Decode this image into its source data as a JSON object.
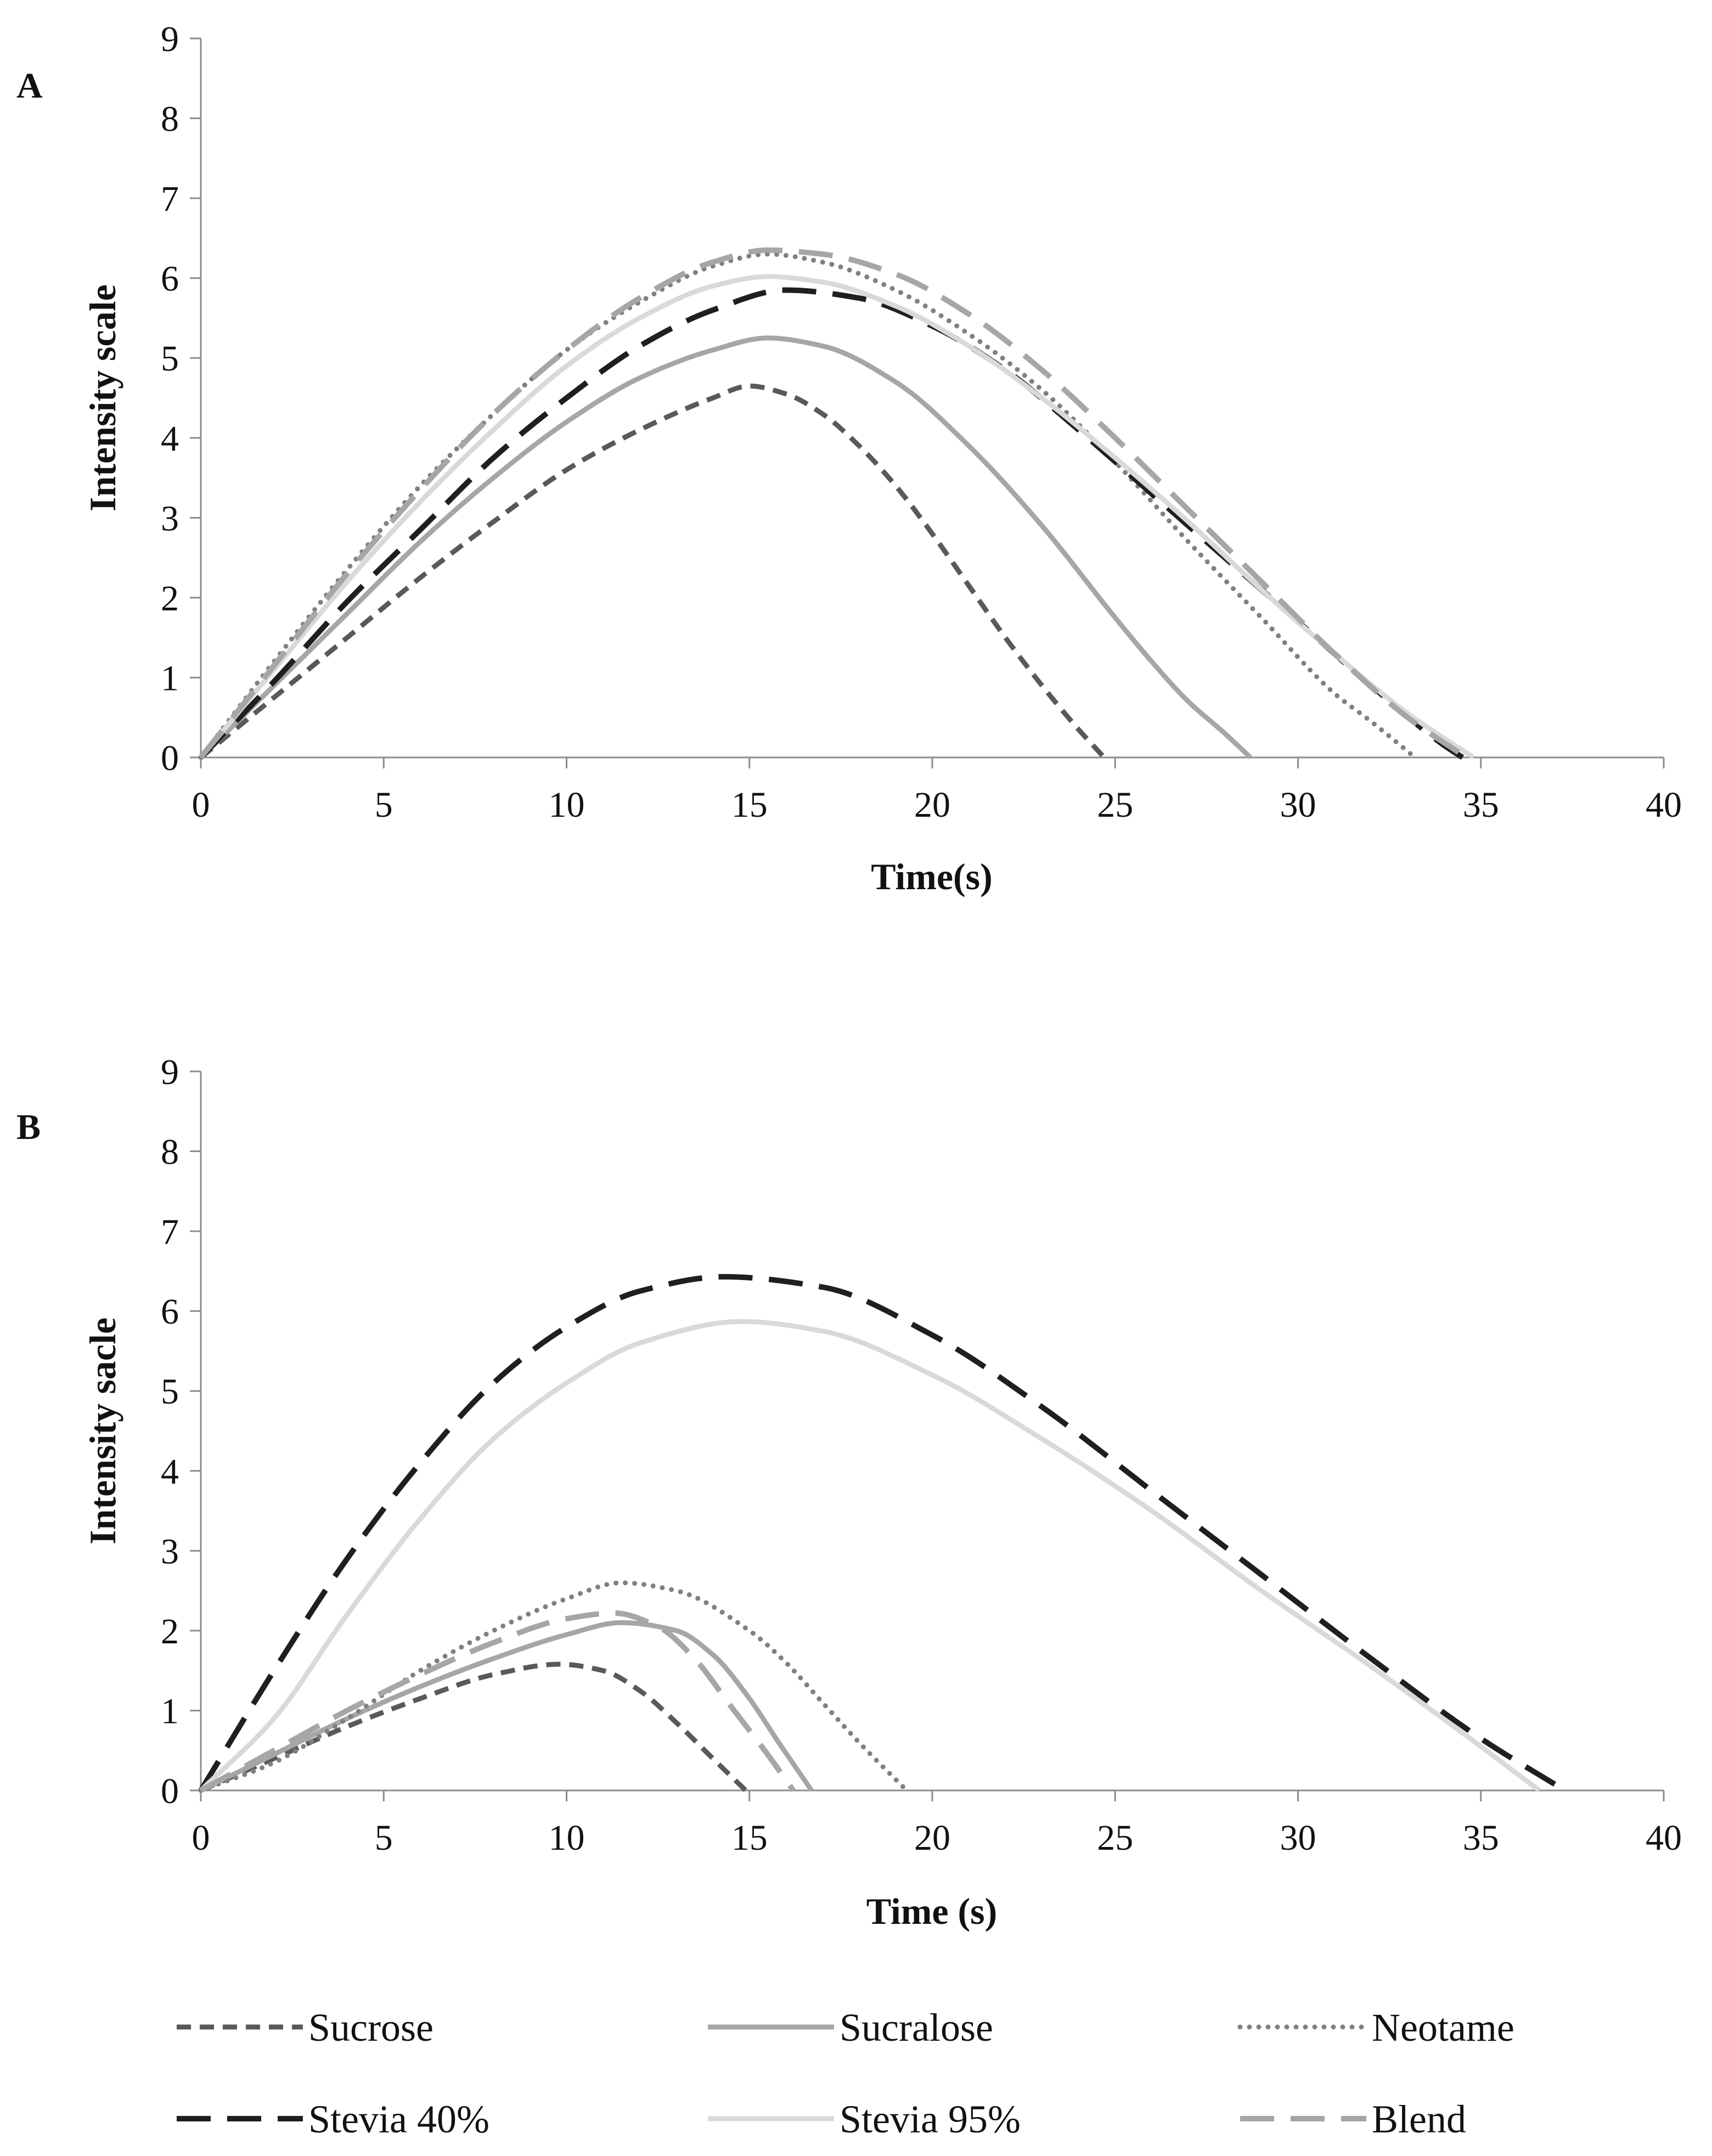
{
  "chart_data": [
    {
      "type": "line",
      "panel": "A",
      "title": "",
      "xlabel": "Time(s)",
      "ylabel": "Intensity scale",
      "xlim": [
        0,
        40
      ],
      "ylim": [
        0,
        9
      ],
      "xticks": [
        0,
        5,
        10,
        15,
        20,
        25,
        30,
        35,
        40
      ],
      "yticks": [
        0,
        1,
        2,
        3,
        4,
        5,
        6,
        7,
        8,
        9
      ],
      "grid": false,
      "series": [
        {
          "name": "Sucrose",
          "x": [
            0,
            2,
            4,
            6,
            8,
            10,
            12,
            14,
            15,
            16,
            17,
            18,
            19,
            20,
            21,
            22,
            23,
            24,
            24.7
          ],
          "y": [
            0,
            0.75,
            1.5,
            2.25,
            2.95,
            3.6,
            4.1,
            4.5,
            4.65,
            4.55,
            4.3,
            3.9,
            3.4,
            2.8,
            2.15,
            1.5,
            0.9,
            0.35,
            0
          ]
        },
        {
          "name": "Sucralose",
          "x": [
            0,
            2,
            4,
            6,
            8,
            10,
            12,
            14,
            15.5,
            17,
            19,
            21,
            23,
            25,
            26,
            27,
            28,
            28.7
          ],
          "y": [
            0,
            0.9,
            1.8,
            2.7,
            3.5,
            4.2,
            4.75,
            5.1,
            5.25,
            5.15,
            4.7,
            3.9,
            2.9,
            1.75,
            1.2,
            0.7,
            0.3,
            0
          ]
        },
        {
          "name": "Neotame",
          "x": [
            0,
            2,
            4,
            6,
            8,
            10,
            12,
            14,
            15.5,
            17,
            19,
            21,
            23,
            25,
            27,
            29,
            31,
            32,
            33.2
          ],
          "y": [
            0,
            1.2,
            2.35,
            3.4,
            4.3,
            5.1,
            5.7,
            6.15,
            6.3,
            6.2,
            5.85,
            5.3,
            4.6,
            3.7,
            2.7,
            1.75,
            0.8,
            0.45,
            0
          ]
        },
        {
          "name": "Stevia 40%",
          "x": [
            0,
            2,
            4,
            6,
            8,
            10,
            12,
            14,
            16,
            18,
            20,
            22,
            24,
            26,
            28,
            30,
            32,
            34,
            34.5
          ],
          "y": [
            0,
            0.95,
            1.95,
            2.85,
            3.75,
            4.5,
            5.15,
            5.6,
            5.85,
            5.75,
            5.4,
            4.85,
            4.1,
            3.3,
            2.5,
            1.7,
            0.9,
            0.15,
            0
          ]
        },
        {
          "name": "Stevia 95%",
          "x": [
            0,
            2,
            4,
            6,
            8,
            10,
            12,
            14,
            15.5,
            17,
            19,
            21,
            23,
            25,
            27,
            29,
            31,
            33,
            34.8
          ],
          "y": [
            0,
            1.1,
            2.2,
            3.2,
            4.1,
            4.9,
            5.5,
            5.9,
            6.02,
            5.95,
            5.65,
            5.15,
            4.5,
            3.75,
            2.95,
            2.1,
            1.3,
            0.55,
            0
          ]
        },
        {
          "name": "Blend",
          "x": [
            0,
            2,
            4,
            6,
            8,
            10,
            12,
            14,
            15.5,
            17,
            19,
            21,
            23,
            25,
            27,
            29,
            31,
            33,
            34.6
          ],
          "y": [
            0,
            1.15,
            2.3,
            3.35,
            4.3,
            5.1,
            5.75,
            6.2,
            6.35,
            6.3,
            6.05,
            5.55,
            4.85,
            4.0,
            3.1,
            2.2,
            1.3,
            0.5,
            0
          ]
        }
      ]
    },
    {
      "type": "line",
      "panel": "B",
      "title": "",
      "xlabel": "Time (s)",
      "ylabel": "Intensity sacle",
      "xlim": [
        0,
        40
      ],
      "ylim": [
        0,
        9
      ],
      "xticks": [
        0,
        5,
        10,
        15,
        20,
        25,
        30,
        35,
        40
      ],
      "yticks": [
        0,
        1,
        2,
        3,
        4,
        5,
        6,
        7,
        8,
        9
      ],
      "grid": false,
      "series": [
        {
          "name": "Sucrose",
          "x": [
            0,
            2,
            4,
            6,
            8,
            9.8,
            11,
            12,
            13,
            14,
            14.9
          ],
          "y": [
            0,
            0.4,
            0.8,
            1.15,
            1.45,
            1.58,
            1.5,
            1.25,
            0.85,
            0.4,
            0
          ]
        },
        {
          "name": "Sucralose",
          "x": [
            0,
            2,
            4,
            6,
            8,
            10,
            11.5,
            13,
            14,
            15,
            15.8,
            16.7
          ],
          "y": [
            0,
            0.45,
            0.9,
            1.3,
            1.65,
            1.95,
            2.1,
            2.0,
            1.7,
            1.15,
            0.6,
            0
          ]
        },
        {
          "name": "Neotame",
          "x": [
            0,
            2,
            4,
            6,
            8,
            10,
            11.5,
            13,
            15,
            16,
            17,
            18,
            19.3
          ],
          "y": [
            0,
            0.35,
            0.9,
            1.5,
            2.0,
            2.4,
            2.6,
            2.5,
            2.0,
            1.6,
            1.1,
            0.6,
            0
          ]
        },
        {
          "name": "Stevia 40%",
          "x": [
            0,
            2,
            4,
            6,
            8,
            10,
            12,
            14.3,
            17,
            20,
            23,
            26,
            29,
            32,
            35,
            37.3
          ],
          "y": [
            0,
            1.5,
            2.9,
            4.1,
            5.1,
            5.8,
            6.25,
            6.43,
            6.3,
            5.7,
            4.8,
            3.75,
            2.7,
            1.65,
            0.65,
            0
          ]
        },
        {
          "name": "Stevia 95%",
          "x": [
            0,
            2,
            4,
            6,
            8,
            10,
            12,
            14.8,
            17,
            20,
            23,
            26,
            29,
            32,
            35,
            36.6
          ],
          "y": [
            0,
            0.9,
            2.2,
            3.4,
            4.4,
            5.1,
            5.6,
            5.87,
            5.75,
            5.2,
            4.4,
            3.5,
            2.5,
            1.55,
            0.55,
            0
          ]
        },
        {
          "name": "Blend",
          "x": [
            0,
            2,
            4,
            6,
            8,
            10,
            11.3,
            12.5,
            13.5,
            14.5,
            15.5,
            16.2
          ],
          "y": [
            0,
            0.5,
            1.0,
            1.45,
            1.85,
            2.15,
            2.22,
            2.05,
            1.65,
            1.05,
            0.45,
            0
          ]
        }
      ]
    }
  ],
  "panels": {
    "a": {
      "letter": "A"
    },
    "b": {
      "letter": "B"
    }
  },
  "legend": {
    "placement": "bottom",
    "items": [
      {
        "name": "Sucrose",
        "color": "#595959",
        "style": "short-dash"
      },
      {
        "name": "Sucralose",
        "color": "#a6a6a6",
        "style": "solid"
      },
      {
        "name": "Neotame",
        "color": "#808080",
        "style": "dot"
      },
      {
        "name": "Stevia 40%",
        "color": "#1f1f1f",
        "style": "long-dash"
      },
      {
        "name": "Stevia 95%",
        "color": "#d9d9d9",
        "style": "solid"
      },
      {
        "name": "Blend",
        "color": "#a6a6a6",
        "style": "long-dash"
      }
    ]
  }
}
